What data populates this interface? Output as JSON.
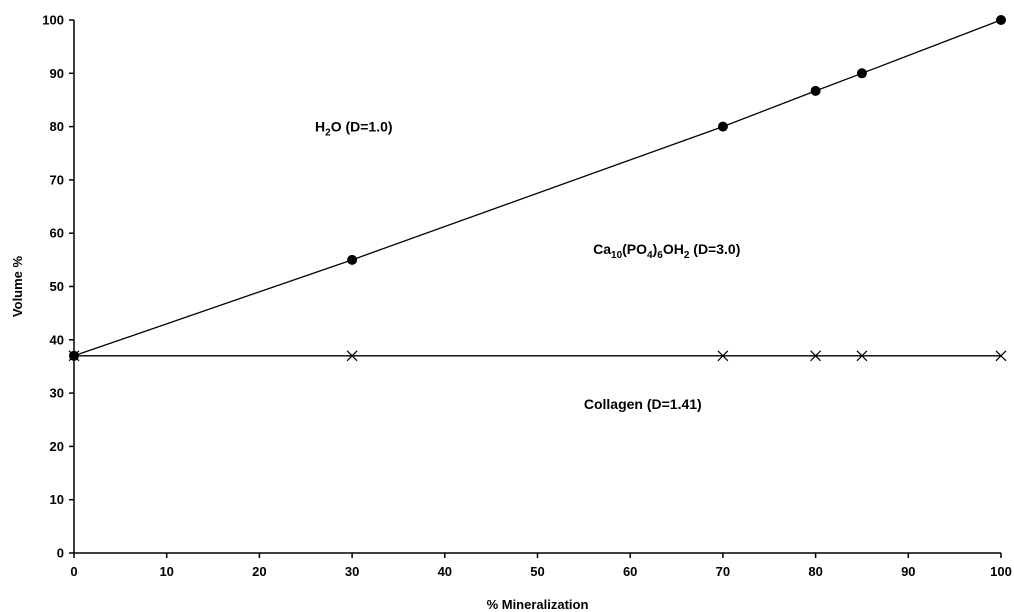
{
  "chart_data": {
    "type": "line",
    "title": "",
    "xlabel": "% Mineralization",
    "ylabel": "Volume %",
    "xlim": [
      0,
      100
    ],
    "ylim": [
      0,
      100
    ],
    "xticks": [
      0,
      10,
      20,
      30,
      40,
      50,
      60,
      70,
      80,
      90,
      100
    ],
    "yticks": [
      0,
      10,
      20,
      30,
      40,
      50,
      60,
      70,
      80,
      90,
      100
    ],
    "grid": false,
    "series": [
      {
        "marker": "filled-circle",
        "color": "#000000",
        "x": [
          0,
          30,
          70,
          80,
          85,
          100
        ],
        "y": [
          37,
          55,
          80,
          86.7,
          90,
          100
        ]
      },
      {
        "marker": "x",
        "color": "#000000",
        "x": [
          0,
          30,
          70,
          80,
          85,
          100
        ],
        "y": [
          37,
          37,
          37,
          37,
          37,
          37
        ]
      }
    ],
    "annotations": [
      {
        "id": "water",
        "parts": [
          [
            "H",
            "n"
          ],
          [
            "2",
            "sub"
          ],
          [
            "O (D=1.0)",
            "n"
          ]
        ],
        "x": 26,
        "y": 80
      },
      {
        "id": "mineral",
        "parts": [
          [
            "Ca",
            "n"
          ],
          [
            "10",
            "sub"
          ],
          [
            "(PO",
            "n"
          ],
          [
            "4",
            "sub"
          ],
          [
            ")",
            "n"
          ],
          [
            "6",
            "sub"
          ],
          [
            "OH",
            "n"
          ],
          [
            "2",
            "sub"
          ],
          [
            " (D=3.0)",
            "n"
          ]
        ],
        "x": 56,
        "y": 57
      },
      {
        "id": "collagen",
        "parts": [
          [
            "Collagen (D=1.41)",
            "n"
          ]
        ],
        "x": 55,
        "y": 28
      }
    ]
  }
}
